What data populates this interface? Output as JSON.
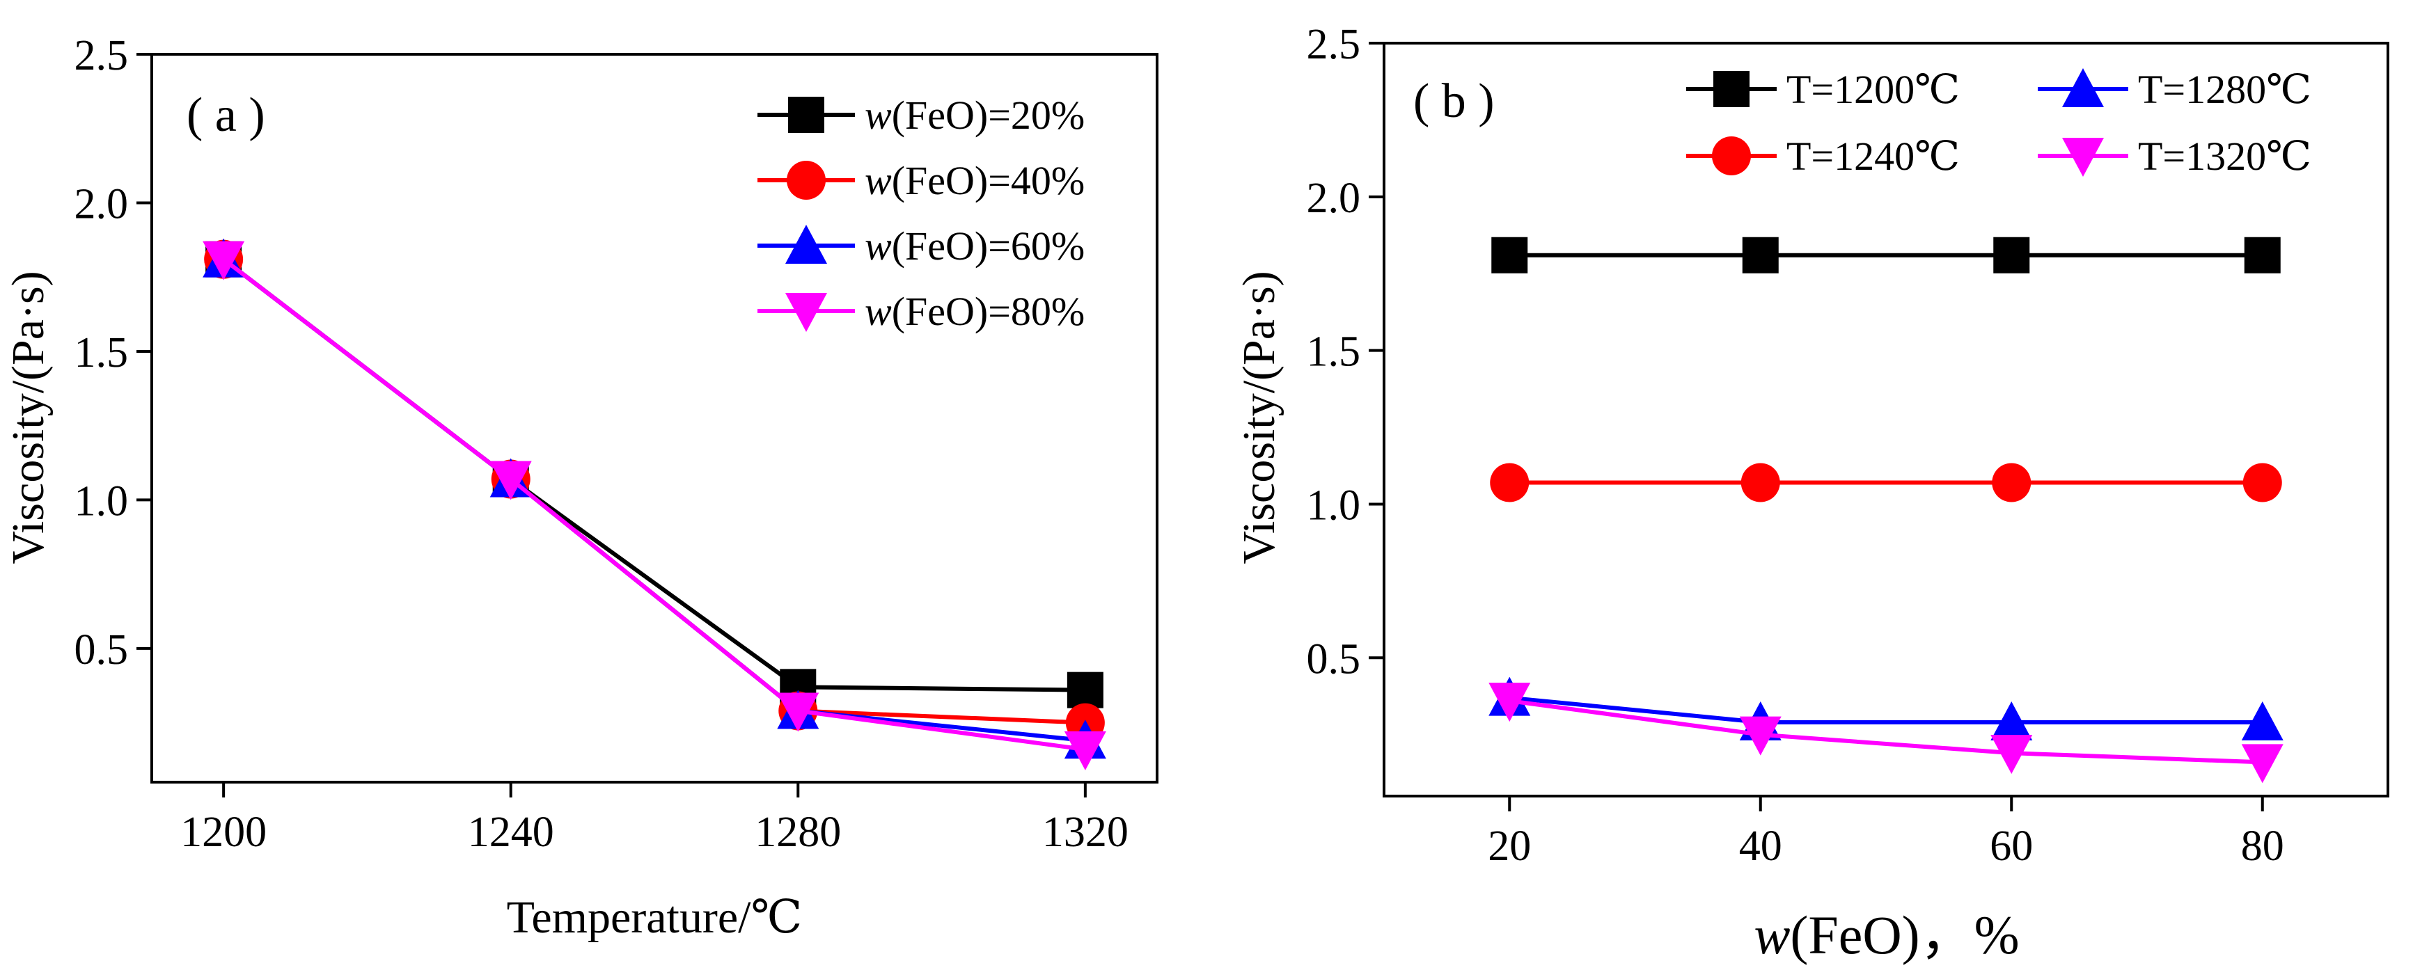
{
  "chart_data": [
    {
      "type": "line",
      "panel_label": "( a )",
      "xlabel": "Temperature/℃",
      "ylabel": "Viscosity/(Pa·s)",
      "x": [
        1200,
        1240,
        1280,
        1320
      ],
      "x_tick_labels": [
        "1200",
        "1240",
        "1280",
        "1320"
      ],
      "xlim": [
        1190,
        1330
      ],
      "ylim": [
        0.05,
        2.5
      ],
      "y_ticks": [
        0.5,
        1.0,
        1.5,
        2.0,
        2.5
      ],
      "y_tick_labels": [
        "0.5",
        "1.0",
        "1.5",
        "2.0",
        "2.5"
      ],
      "legend_position": "top-right",
      "series": [
        {
          "name_italic": "w",
          "name": "(FeO)=20%",
          "color": "#000000",
          "marker": "square",
          "values": [
            1.81,
            1.07,
            0.37,
            0.36
          ]
        },
        {
          "name_italic": "w",
          "name": "(FeO)=40%",
          "color": "#ff0000",
          "marker": "circle",
          "values": [
            1.81,
            1.07,
            0.29,
            0.25
          ]
        },
        {
          "name_italic": "w",
          "name": "(FeO)=60%",
          "color": "#0000ff",
          "marker": "triangle-up",
          "values": [
            1.81,
            1.07,
            0.29,
            0.19
          ]
        },
        {
          "name_italic": "w",
          "name": "(FeO)=80%",
          "color": "#ff00ff",
          "marker": "triangle-down",
          "values": [
            1.81,
            1.07,
            0.29,
            0.16
          ]
        }
      ]
    },
    {
      "type": "line",
      "panel_label": "( b )",
      "xlabel_italic": "w",
      "xlabel": "(FeO)，%",
      "ylabel": "Viscosity/(Pa·s)",
      "x": [
        20,
        40,
        60,
        80
      ],
      "x_tick_labels": [
        "20",
        "40",
        "60",
        "80"
      ],
      "xlim": [
        10,
        90
      ],
      "ylim": [
        0.05,
        2.5
      ],
      "y_ticks": [
        0.5,
        1.0,
        1.5,
        2.0,
        2.5
      ],
      "y_tick_labels": [
        "0.5",
        "1.0",
        "1.5",
        "2.0",
        "2.5"
      ],
      "legend_position": "top",
      "series": [
        {
          "name": "T=1200℃",
          "color": "#000000",
          "marker": "square",
          "values": [
            1.81,
            1.81,
            1.81,
            1.81
          ]
        },
        {
          "name": "T=1240℃",
          "color": "#ff0000",
          "marker": "circle",
          "values": [
            1.07,
            1.07,
            1.07,
            1.07
          ]
        },
        {
          "name": "T=1280℃",
          "color": "#0000ff",
          "marker": "triangle-up",
          "values": [
            0.37,
            0.29,
            0.29,
            0.29
          ]
        },
        {
          "name": "T=1320℃",
          "color": "#ff00ff",
          "marker": "triangle-down",
          "values": [
            0.36,
            0.25,
            0.19,
            0.16
          ]
        }
      ]
    }
  ]
}
